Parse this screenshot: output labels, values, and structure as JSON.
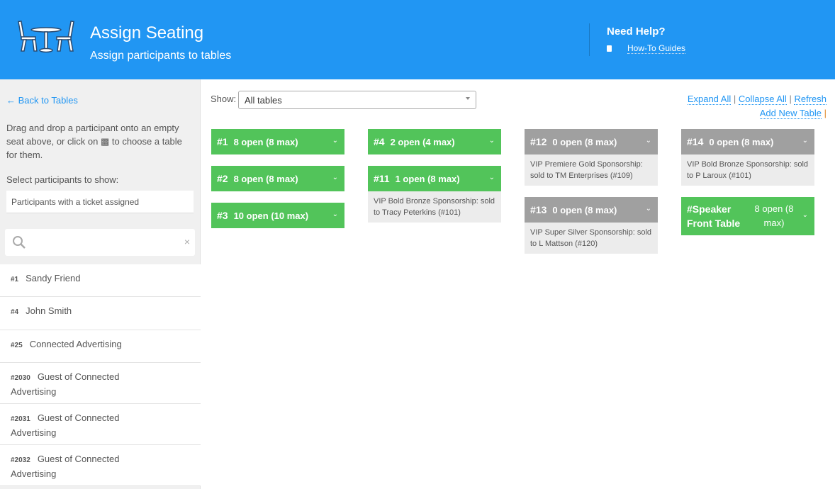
{
  "header": {
    "title": "Assign Seating",
    "subtitle": "Assign participants to tables",
    "help_title": "Need Help?",
    "guides_label": "How-To Guides"
  },
  "sidebar": {
    "back_label": "← Back to Tables",
    "instr_pre": "Drag and drop a participant onto an empty seat above, or click on ",
    "instr_post": " to choose a table for them.",
    "select_label": "Select participants to show:",
    "select_value": "Participants with a ticket assigned",
    "search_placeholder": "",
    "clear": "×",
    "participants": [
      {
        "num": "#1",
        "name": "Sandy Friend"
      },
      {
        "num": "#4",
        "name": "John Smith"
      },
      {
        "num": "#25",
        "name": "Connected Advertising"
      },
      {
        "num": "#2030",
        "name": "Guest of Connected Advertising"
      },
      {
        "num": "#2031",
        "name": "Guest of Connected Advertising"
      },
      {
        "num": "#2032",
        "name": "Guest of Connected Advertising"
      }
    ]
  },
  "main": {
    "show_label": "Show:",
    "show_value": "All tables",
    "expand_all": "Expand All",
    "collapse_all": "Collapse All",
    "refresh": "Refresh",
    "add_table": "Add New Table",
    "sep": "|",
    "tables": [
      {
        "num": "#1",
        "open": "8 open (8 max)",
        "status": "open"
      },
      {
        "num": "#2",
        "open": "8 open (8 max)",
        "status": "open"
      },
      {
        "num": "#3",
        "open": "10 open (10 max)",
        "status": "open"
      },
      {
        "num": "#4",
        "open": "2 open (4 max)",
        "status": "open"
      },
      {
        "num": "#11",
        "open": "1 open (8 max)",
        "status": "open",
        "detail": "VIP Bold Bronze Sponsorship: sold to Tracy Peterkins (#101)"
      },
      {
        "num": "#12",
        "open": "0 open (8 max)",
        "status": "full",
        "detail": "VIP Premiere Gold Sponsorship: sold to TM Enterprises (#109)"
      },
      {
        "num": "#13",
        "open": "0 open (8 max)",
        "status": "full",
        "detail": "VIP Super Silver Sponsorship: sold to L Mattson (#120)"
      },
      {
        "num": "#14",
        "open": "0 open (8 max)",
        "status": "full",
        "detail": "VIP Bold Bronze Sponsorship: sold to P Laroux (#101)"
      },
      {
        "num": "#Speaker Front Table",
        "open": "8 open (8 max)",
        "status": "open"
      }
    ]
  },
  "colors": {
    "header": "#2196f3",
    "open": "#52c45a",
    "full": "#a0a0a0"
  }
}
